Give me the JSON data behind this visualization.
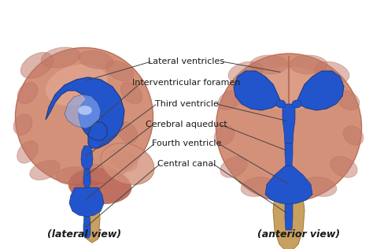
{
  "background_color": "#ffffff",
  "brain_color": "#d4917a",
  "brain_dark": "#b8705a",
  "brain_fold_color": "#c07868",
  "brain_highlight": "#e8b09a",
  "ventricle_color": "#2255cc",
  "ventricle_edge": "#1a3a80",
  "brainstem_color": "#c8a060",
  "brainstem_edge": "#a07838",
  "cerebellum_color": "#b86050",
  "label_color": "#1a1a1a",
  "line_color": "#444444",
  "labels": [
    "Lateral ventricles",
    "Interventricular foramen",
    "Third ventricle",
    "Cerebral aqueduct",
    "Fourth ventricle",
    "Central canal"
  ],
  "lateral_view_label": "(lateral view)",
  "anterior_view_label": "(anterior view)"
}
